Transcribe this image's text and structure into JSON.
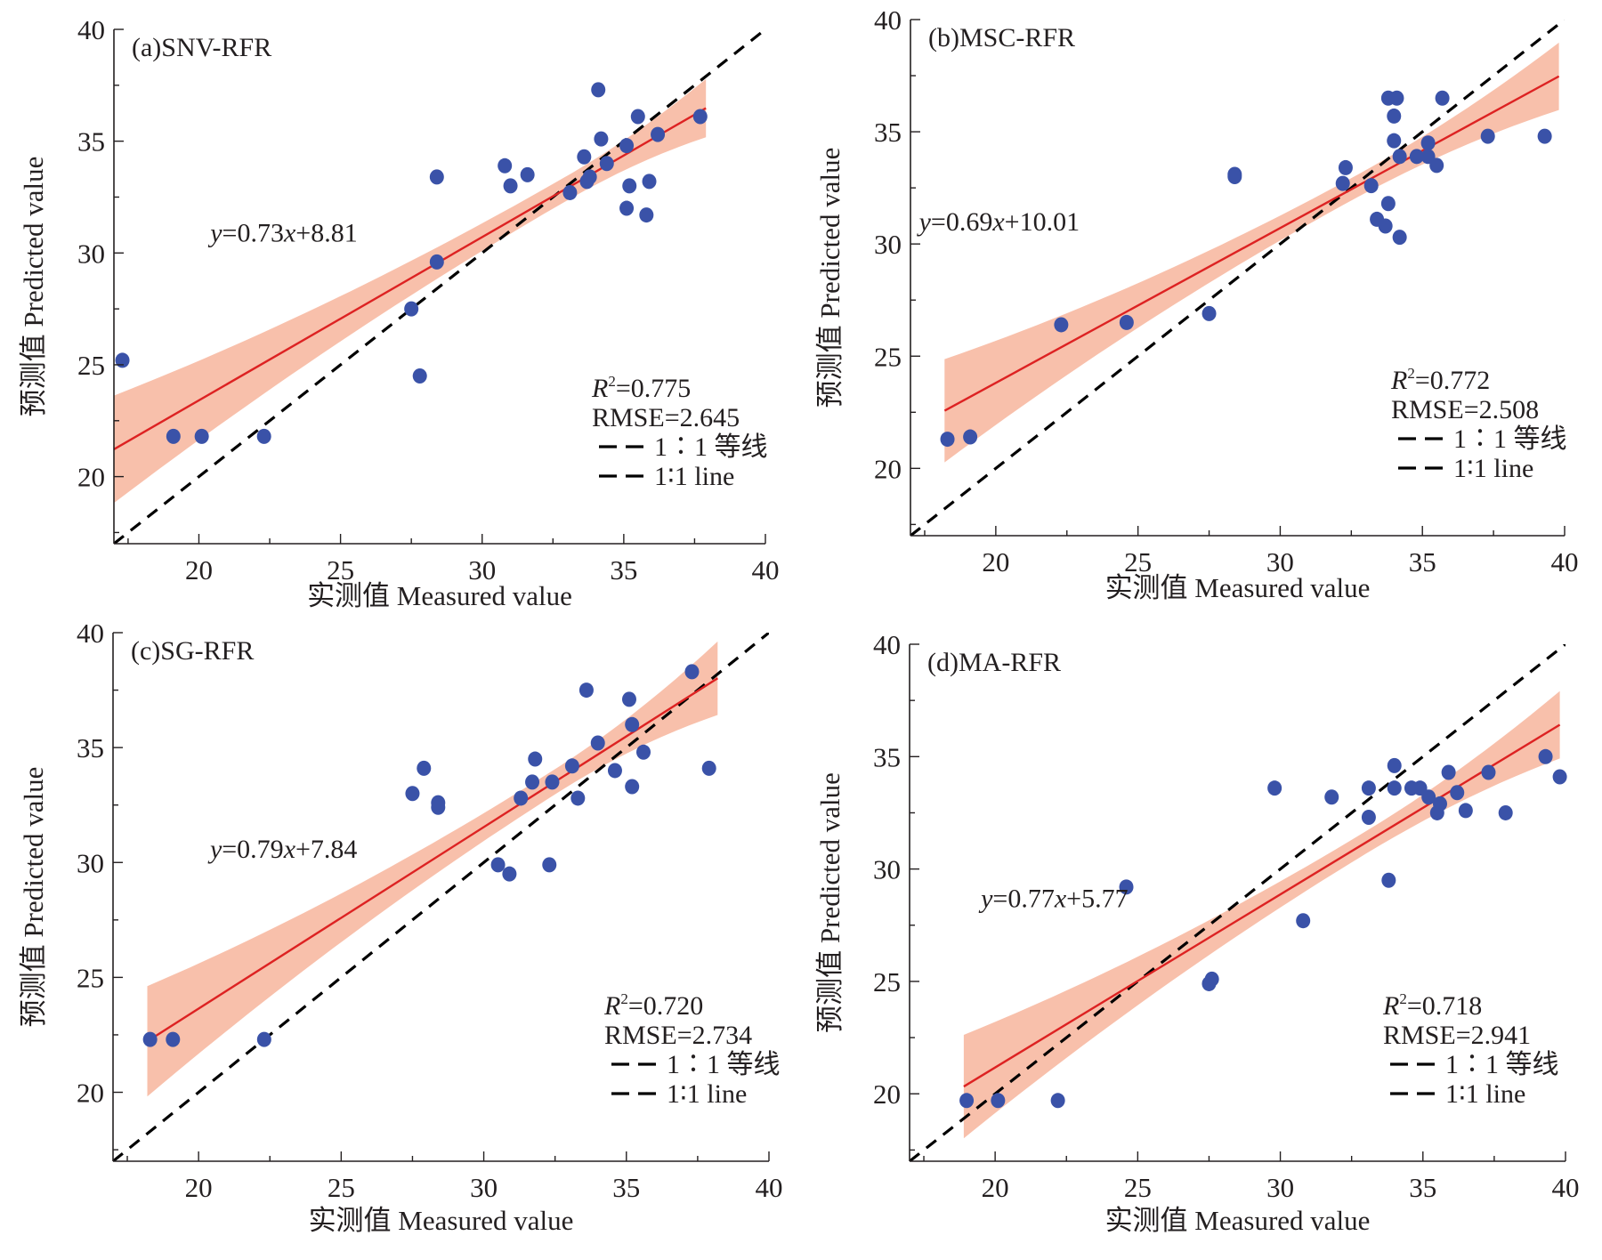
{
  "colors": {
    "point": "#3a52a8",
    "fit_line": "#dd2222",
    "band": "#f8c0ab",
    "identity_line": "#000000",
    "axis": "#231f20"
  },
  "chart_data": [
    {
      "id": "a",
      "type": "scatter",
      "title": "(a)SNV-RFR",
      "xlabel": "实测值 Measured value",
      "ylabel": "预测值 Predicted value",
      "xlim": [
        17,
        40
      ],
      "ylim": [
        17,
        40
      ],
      "xticks": [
        20,
        25,
        30,
        35,
        40
      ],
      "yticks": [
        20,
        25,
        30,
        35,
        40
      ],
      "equation": "y=0.73x+8.81",
      "equation_parts": {
        "y": "y",
        "mid": "=0.73",
        "x": "x",
        "tail": "+8.81"
      },
      "fit": {
        "slope": 0.73,
        "intercept": 8.81,
        "x_range": [
          17,
          37.9
        ],
        "band_halfwidth_ends": [
          2.4,
          1.3
        ],
        "band_halfwidth_mid": 0.55,
        "band_center_x": 33.0
      },
      "r2_label": "R",
      "r2_value": "=0.775",
      "rmse": "RMSE=2.645",
      "legend": [
        "1∶1 等线",
        "1∶1 line"
      ],
      "legend_position": "bottom-right",
      "points": [
        [
          17.3,
          25.2
        ],
        [
          19.1,
          21.8
        ],
        [
          20.1,
          21.8
        ],
        [
          22.3,
          21.8
        ],
        [
          27.5,
          27.5
        ],
        [
          27.8,
          24.5
        ],
        [
          28.4,
          33.4
        ],
        [
          28.4,
          29.6
        ],
        [
          30.8,
          33.9
        ],
        [
          31.0,
          33.0
        ],
        [
          31.6,
          33.5
        ],
        [
          33.1,
          32.7
        ],
        [
          33.6,
          34.3
        ],
        [
          33.7,
          33.2
        ],
        [
          33.8,
          33.4
        ],
        [
          34.1,
          37.3
        ],
        [
          34.2,
          35.1
        ],
        [
          34.4,
          34.0
        ],
        [
          35.1,
          34.8
        ],
        [
          35.2,
          33.0
        ],
        [
          35.1,
          32.0
        ],
        [
          35.5,
          36.1
        ],
        [
          35.8,
          31.7
        ],
        [
          35.9,
          33.2
        ],
        [
          36.2,
          35.3
        ],
        [
          37.7,
          36.1
        ]
      ]
    },
    {
      "id": "b",
      "type": "scatter",
      "title": "(b)MSC-RFR",
      "xlabel": "实测值 Measured value",
      "ylabel": "预测值 Predicted value",
      "xlim": [
        17,
        40
      ],
      "ylim": [
        17,
        40
      ],
      "xticks": [
        20,
        25,
        30,
        35,
        40
      ],
      "yticks": [
        20,
        25,
        30,
        35,
        40
      ],
      "equation": "y=0.69x+10.01",
      "equation_parts": {
        "y": "y",
        "mid": "=0.69",
        "x": "x",
        "tail": "+10.01"
      },
      "fit": {
        "slope": 0.69,
        "intercept": 10.01,
        "x_range": [
          18.2,
          39.8
        ],
        "band_halfwidth_ends": [
          2.3,
          1.5
        ],
        "band_halfwidth_mid": 0.5,
        "band_center_x": 32.5
      },
      "r2_label": "R",
      "r2_value": "=0.772",
      "rmse": "RMSE=2.508",
      "legend": [
        "1∶1 等线",
        "1∶1 line"
      ],
      "legend_position": "bottom-right",
      "points": [
        [
          18.3,
          21.3
        ],
        [
          19.1,
          21.4
        ],
        [
          22.3,
          26.4
        ],
        [
          24.6,
          26.5
        ],
        [
          27.5,
          26.9
        ],
        [
          28.4,
          33.1
        ],
        [
          28.4,
          33.0
        ],
        [
          32.2,
          32.7
        ],
        [
          32.3,
          33.4
        ],
        [
          33.2,
          32.6
        ],
        [
          33.4,
          31.1
        ],
        [
          33.7,
          30.8
        ],
        [
          33.8,
          31.8
        ],
        [
          33.8,
          36.5
        ],
        [
          34.1,
          36.5
        ],
        [
          34.0,
          35.7
        ],
        [
          34.0,
          34.6
        ],
        [
          34.2,
          33.9
        ],
        [
          34.2,
          30.3
        ],
        [
          34.8,
          33.9
        ],
        [
          35.2,
          34.5
        ],
        [
          35.2,
          33.9
        ],
        [
          35.5,
          33.5
        ],
        [
          35.7,
          36.5
        ],
        [
          37.3,
          34.8
        ],
        [
          39.3,
          34.8
        ]
      ]
    },
    {
      "id": "c",
      "type": "scatter",
      "title": "(c)SG-RFR",
      "xlabel": "实测值 Measured value",
      "ylabel": "预测值 Predicted value",
      "xlim": [
        17,
        40
      ],
      "ylim": [
        17,
        40
      ],
      "xticks": [
        20,
        25,
        30,
        35,
        40
      ],
      "yticks": [
        20,
        25,
        30,
        35,
        40
      ],
      "equation": "y=0.79x+7.84",
      "equation_parts": {
        "y": "y",
        "mid": "=0.79",
        "x": "x",
        "tail": "+7.84"
      },
      "fit": {
        "slope": 0.79,
        "intercept": 7.84,
        "x_range": [
          18.2,
          38.2
        ],
        "band_halfwidth_ends": [
          2.4,
          1.6
        ],
        "band_halfwidth_mid": 0.55,
        "band_center_x": 32.5
      },
      "r2_label": "R",
      "r2_value": "=0.720",
      "rmse": "RMSE=2.734",
      "legend": [
        "1∶1 等线",
        "1∶1 line"
      ],
      "legend_position": "bottom-right",
      "points": [
        [
          18.3,
          22.3
        ],
        [
          19.1,
          22.3
        ],
        [
          22.3,
          22.3
        ],
        [
          27.5,
          33.0
        ],
        [
          27.9,
          34.1
        ],
        [
          28.4,
          32.6
        ],
        [
          28.4,
          32.4
        ],
        [
          30.5,
          29.9
        ],
        [
          30.9,
          29.5
        ],
        [
          31.3,
          32.8
        ],
        [
          31.7,
          33.5
        ],
        [
          31.8,
          34.5
        ],
        [
          32.3,
          29.9
        ],
        [
          32.4,
          33.5
        ],
        [
          33.1,
          34.2
        ],
        [
          33.3,
          32.8
        ],
        [
          33.6,
          37.5
        ],
        [
          34.0,
          35.2
        ],
        [
          34.6,
          34.0
        ],
        [
          35.1,
          37.1
        ],
        [
          35.2,
          36.0
        ],
        [
          35.2,
          33.3
        ],
        [
          35.6,
          34.8
        ],
        [
          37.3,
          38.3
        ],
        [
          37.9,
          34.1
        ]
      ]
    },
    {
      "id": "d",
      "type": "scatter",
      "title": "(d)MA-RFR",
      "xlabel": "实测值 Measured value",
      "ylabel": "预测值 Predicted value",
      "xlim": [
        17,
        40
      ],
      "ylim": [
        17,
        40
      ],
      "xticks": [
        20,
        25,
        30,
        35,
        40
      ],
      "yticks": [
        20,
        25,
        30,
        35,
        40
      ],
      "equation": "y=0.77x+5.77",
      "equation_parts": {
        "y": "y",
        "mid": "=0.77",
        "x": "x",
        "tail": "+5.77"
      },
      "fit": {
        "slope": 0.77,
        "intercept": 5.77,
        "x_range": [
          18.9,
          39.8
        ],
        "band_halfwidth_ends": [
          2.3,
          1.5
        ],
        "band_halfwidth_mid": 0.5,
        "band_center_x": 33.0
      },
      "r2_label": "R",
      "r2_value": "=0.718",
      "rmse": "RMSE=2.941",
      "legend": [
        "1∶1 等线",
        "1∶1 line"
      ],
      "legend_position": "bottom-right",
      "points": [
        [
          19.0,
          19.7
        ],
        [
          20.1,
          19.7
        ],
        [
          22.2,
          19.7
        ],
        [
          24.6,
          29.2
        ],
        [
          27.5,
          24.9
        ],
        [
          27.6,
          25.1
        ],
        [
          29.8,
          33.6
        ],
        [
          30.8,
          27.7
        ],
        [
          31.8,
          33.2
        ],
        [
          33.1,
          33.6
        ],
        [
          33.1,
          32.3
        ],
        [
          33.8,
          29.5
        ],
        [
          34.0,
          34.6
        ],
        [
          34.0,
          33.6
        ],
        [
          34.6,
          33.6
        ],
        [
          34.9,
          33.6
        ],
        [
          35.2,
          33.2
        ],
        [
          35.5,
          32.5
        ],
        [
          35.6,
          32.9
        ],
        [
          35.9,
          34.3
        ],
        [
          36.2,
          33.4
        ],
        [
          36.5,
          32.6
        ],
        [
          37.3,
          34.3
        ],
        [
          37.9,
          32.5
        ],
        [
          39.3,
          35.0
        ],
        [
          39.8,
          34.1
        ]
      ]
    }
  ]
}
